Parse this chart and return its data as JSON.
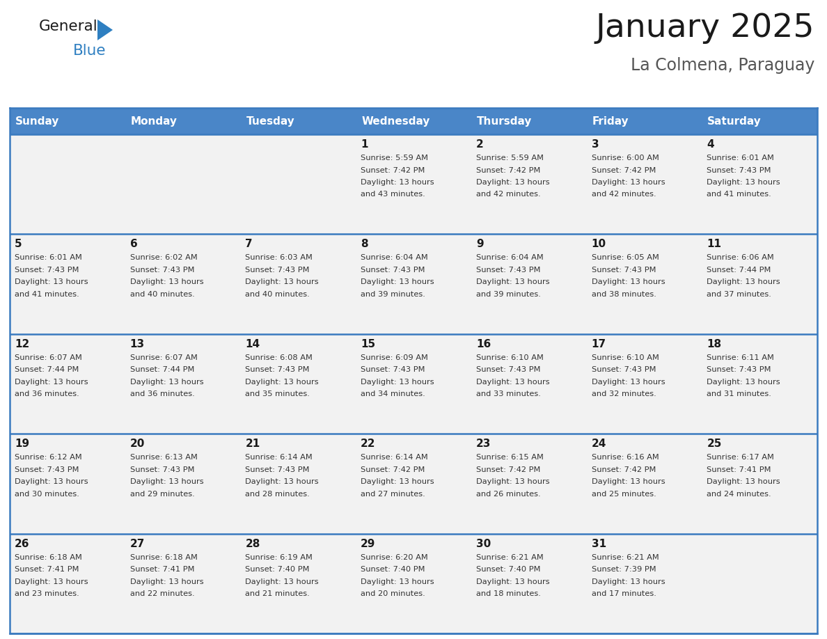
{
  "title": "January 2025",
  "subtitle": "La Colmena, Paraguay",
  "header_color": "#4a86c8",
  "header_text_color": "#ffffff",
  "cell_bg_color": "#f2f2f2",
  "day_headers": [
    "Sunday",
    "Monday",
    "Tuesday",
    "Wednesday",
    "Thursday",
    "Friday",
    "Saturday"
  ],
  "days": [
    {
      "day": 1,
      "col": 3,
      "row": 0,
      "sunrise": "5:59 AM",
      "sunset": "7:42 PM",
      "daylight": "13 hours and 43 minutes."
    },
    {
      "day": 2,
      "col": 4,
      "row": 0,
      "sunrise": "5:59 AM",
      "sunset": "7:42 PM",
      "daylight": "13 hours and 42 minutes."
    },
    {
      "day": 3,
      "col": 5,
      "row": 0,
      "sunrise": "6:00 AM",
      "sunset": "7:42 PM",
      "daylight": "13 hours and 42 minutes."
    },
    {
      "day": 4,
      "col": 6,
      "row": 0,
      "sunrise": "6:01 AM",
      "sunset": "7:43 PM",
      "daylight": "13 hours and 41 minutes."
    },
    {
      "day": 5,
      "col": 0,
      "row": 1,
      "sunrise": "6:01 AM",
      "sunset": "7:43 PM",
      "daylight": "13 hours and 41 minutes."
    },
    {
      "day": 6,
      "col": 1,
      "row": 1,
      "sunrise": "6:02 AM",
      "sunset": "7:43 PM",
      "daylight": "13 hours and 40 minutes."
    },
    {
      "day": 7,
      "col": 2,
      "row": 1,
      "sunrise": "6:03 AM",
      "sunset": "7:43 PM",
      "daylight": "13 hours and 40 minutes."
    },
    {
      "day": 8,
      "col": 3,
      "row": 1,
      "sunrise": "6:04 AM",
      "sunset": "7:43 PM",
      "daylight": "13 hours and 39 minutes."
    },
    {
      "day": 9,
      "col": 4,
      "row": 1,
      "sunrise": "6:04 AM",
      "sunset": "7:43 PM",
      "daylight": "13 hours and 39 minutes."
    },
    {
      "day": 10,
      "col": 5,
      "row": 1,
      "sunrise": "6:05 AM",
      "sunset": "7:43 PM",
      "daylight": "13 hours and 38 minutes."
    },
    {
      "day": 11,
      "col": 6,
      "row": 1,
      "sunrise": "6:06 AM",
      "sunset": "7:44 PM",
      "daylight": "13 hours and 37 minutes."
    },
    {
      "day": 12,
      "col": 0,
      "row": 2,
      "sunrise": "6:07 AM",
      "sunset": "7:44 PM",
      "daylight": "13 hours and 36 minutes."
    },
    {
      "day": 13,
      "col": 1,
      "row": 2,
      "sunrise": "6:07 AM",
      "sunset": "7:44 PM",
      "daylight": "13 hours and 36 minutes."
    },
    {
      "day": 14,
      "col": 2,
      "row": 2,
      "sunrise": "6:08 AM",
      "sunset": "7:43 PM",
      "daylight": "13 hours and 35 minutes."
    },
    {
      "day": 15,
      "col": 3,
      "row": 2,
      "sunrise": "6:09 AM",
      "sunset": "7:43 PM",
      "daylight": "13 hours and 34 minutes."
    },
    {
      "day": 16,
      "col": 4,
      "row": 2,
      "sunrise": "6:10 AM",
      "sunset": "7:43 PM",
      "daylight": "13 hours and 33 minutes."
    },
    {
      "day": 17,
      "col": 5,
      "row": 2,
      "sunrise": "6:10 AM",
      "sunset": "7:43 PM",
      "daylight": "13 hours and 32 minutes."
    },
    {
      "day": 18,
      "col": 6,
      "row": 2,
      "sunrise": "6:11 AM",
      "sunset": "7:43 PM",
      "daylight": "13 hours and 31 minutes."
    },
    {
      "day": 19,
      "col": 0,
      "row": 3,
      "sunrise": "6:12 AM",
      "sunset": "7:43 PM",
      "daylight": "13 hours and 30 minutes."
    },
    {
      "day": 20,
      "col": 1,
      "row": 3,
      "sunrise": "6:13 AM",
      "sunset": "7:43 PM",
      "daylight": "13 hours and 29 minutes."
    },
    {
      "day": 21,
      "col": 2,
      "row": 3,
      "sunrise": "6:14 AM",
      "sunset": "7:43 PM",
      "daylight": "13 hours and 28 minutes."
    },
    {
      "day": 22,
      "col": 3,
      "row": 3,
      "sunrise": "6:14 AM",
      "sunset": "7:42 PM",
      "daylight": "13 hours and 27 minutes."
    },
    {
      "day": 23,
      "col": 4,
      "row": 3,
      "sunrise": "6:15 AM",
      "sunset": "7:42 PM",
      "daylight": "13 hours and 26 minutes."
    },
    {
      "day": 24,
      "col": 5,
      "row": 3,
      "sunrise": "6:16 AM",
      "sunset": "7:42 PM",
      "daylight": "13 hours and 25 minutes."
    },
    {
      "day": 25,
      "col": 6,
      "row": 3,
      "sunrise": "6:17 AM",
      "sunset": "7:41 PM",
      "daylight": "13 hours and 24 minutes."
    },
    {
      "day": 26,
      "col": 0,
      "row": 4,
      "sunrise": "6:18 AM",
      "sunset": "7:41 PM",
      "daylight": "13 hours and 23 minutes."
    },
    {
      "day": 27,
      "col": 1,
      "row": 4,
      "sunrise": "6:18 AM",
      "sunset": "7:41 PM",
      "daylight": "13 hours and 22 minutes."
    },
    {
      "day": 28,
      "col": 2,
      "row": 4,
      "sunrise": "6:19 AM",
      "sunset": "7:40 PM",
      "daylight": "13 hours and 21 minutes."
    },
    {
      "day": 29,
      "col": 3,
      "row": 4,
      "sunrise": "6:20 AM",
      "sunset": "7:40 PM",
      "daylight": "13 hours and 20 minutes."
    },
    {
      "day": 30,
      "col": 4,
      "row": 4,
      "sunrise": "6:21 AM",
      "sunset": "7:40 PM",
      "daylight": "13 hours and 18 minutes."
    },
    {
      "day": 31,
      "col": 5,
      "row": 4,
      "sunrise": "6:21 AM",
      "sunset": "7:39 PM",
      "daylight": "13 hours and 17 minutes."
    }
  ],
  "num_rows": 5,
  "num_cols": 7,
  "logo_general_color": "#1a1a1a",
  "logo_blue_color": "#2e7fc1",
  "title_color": "#1a1a1a",
  "subtitle_color": "#555555",
  "border_color": "#3a7abf"
}
